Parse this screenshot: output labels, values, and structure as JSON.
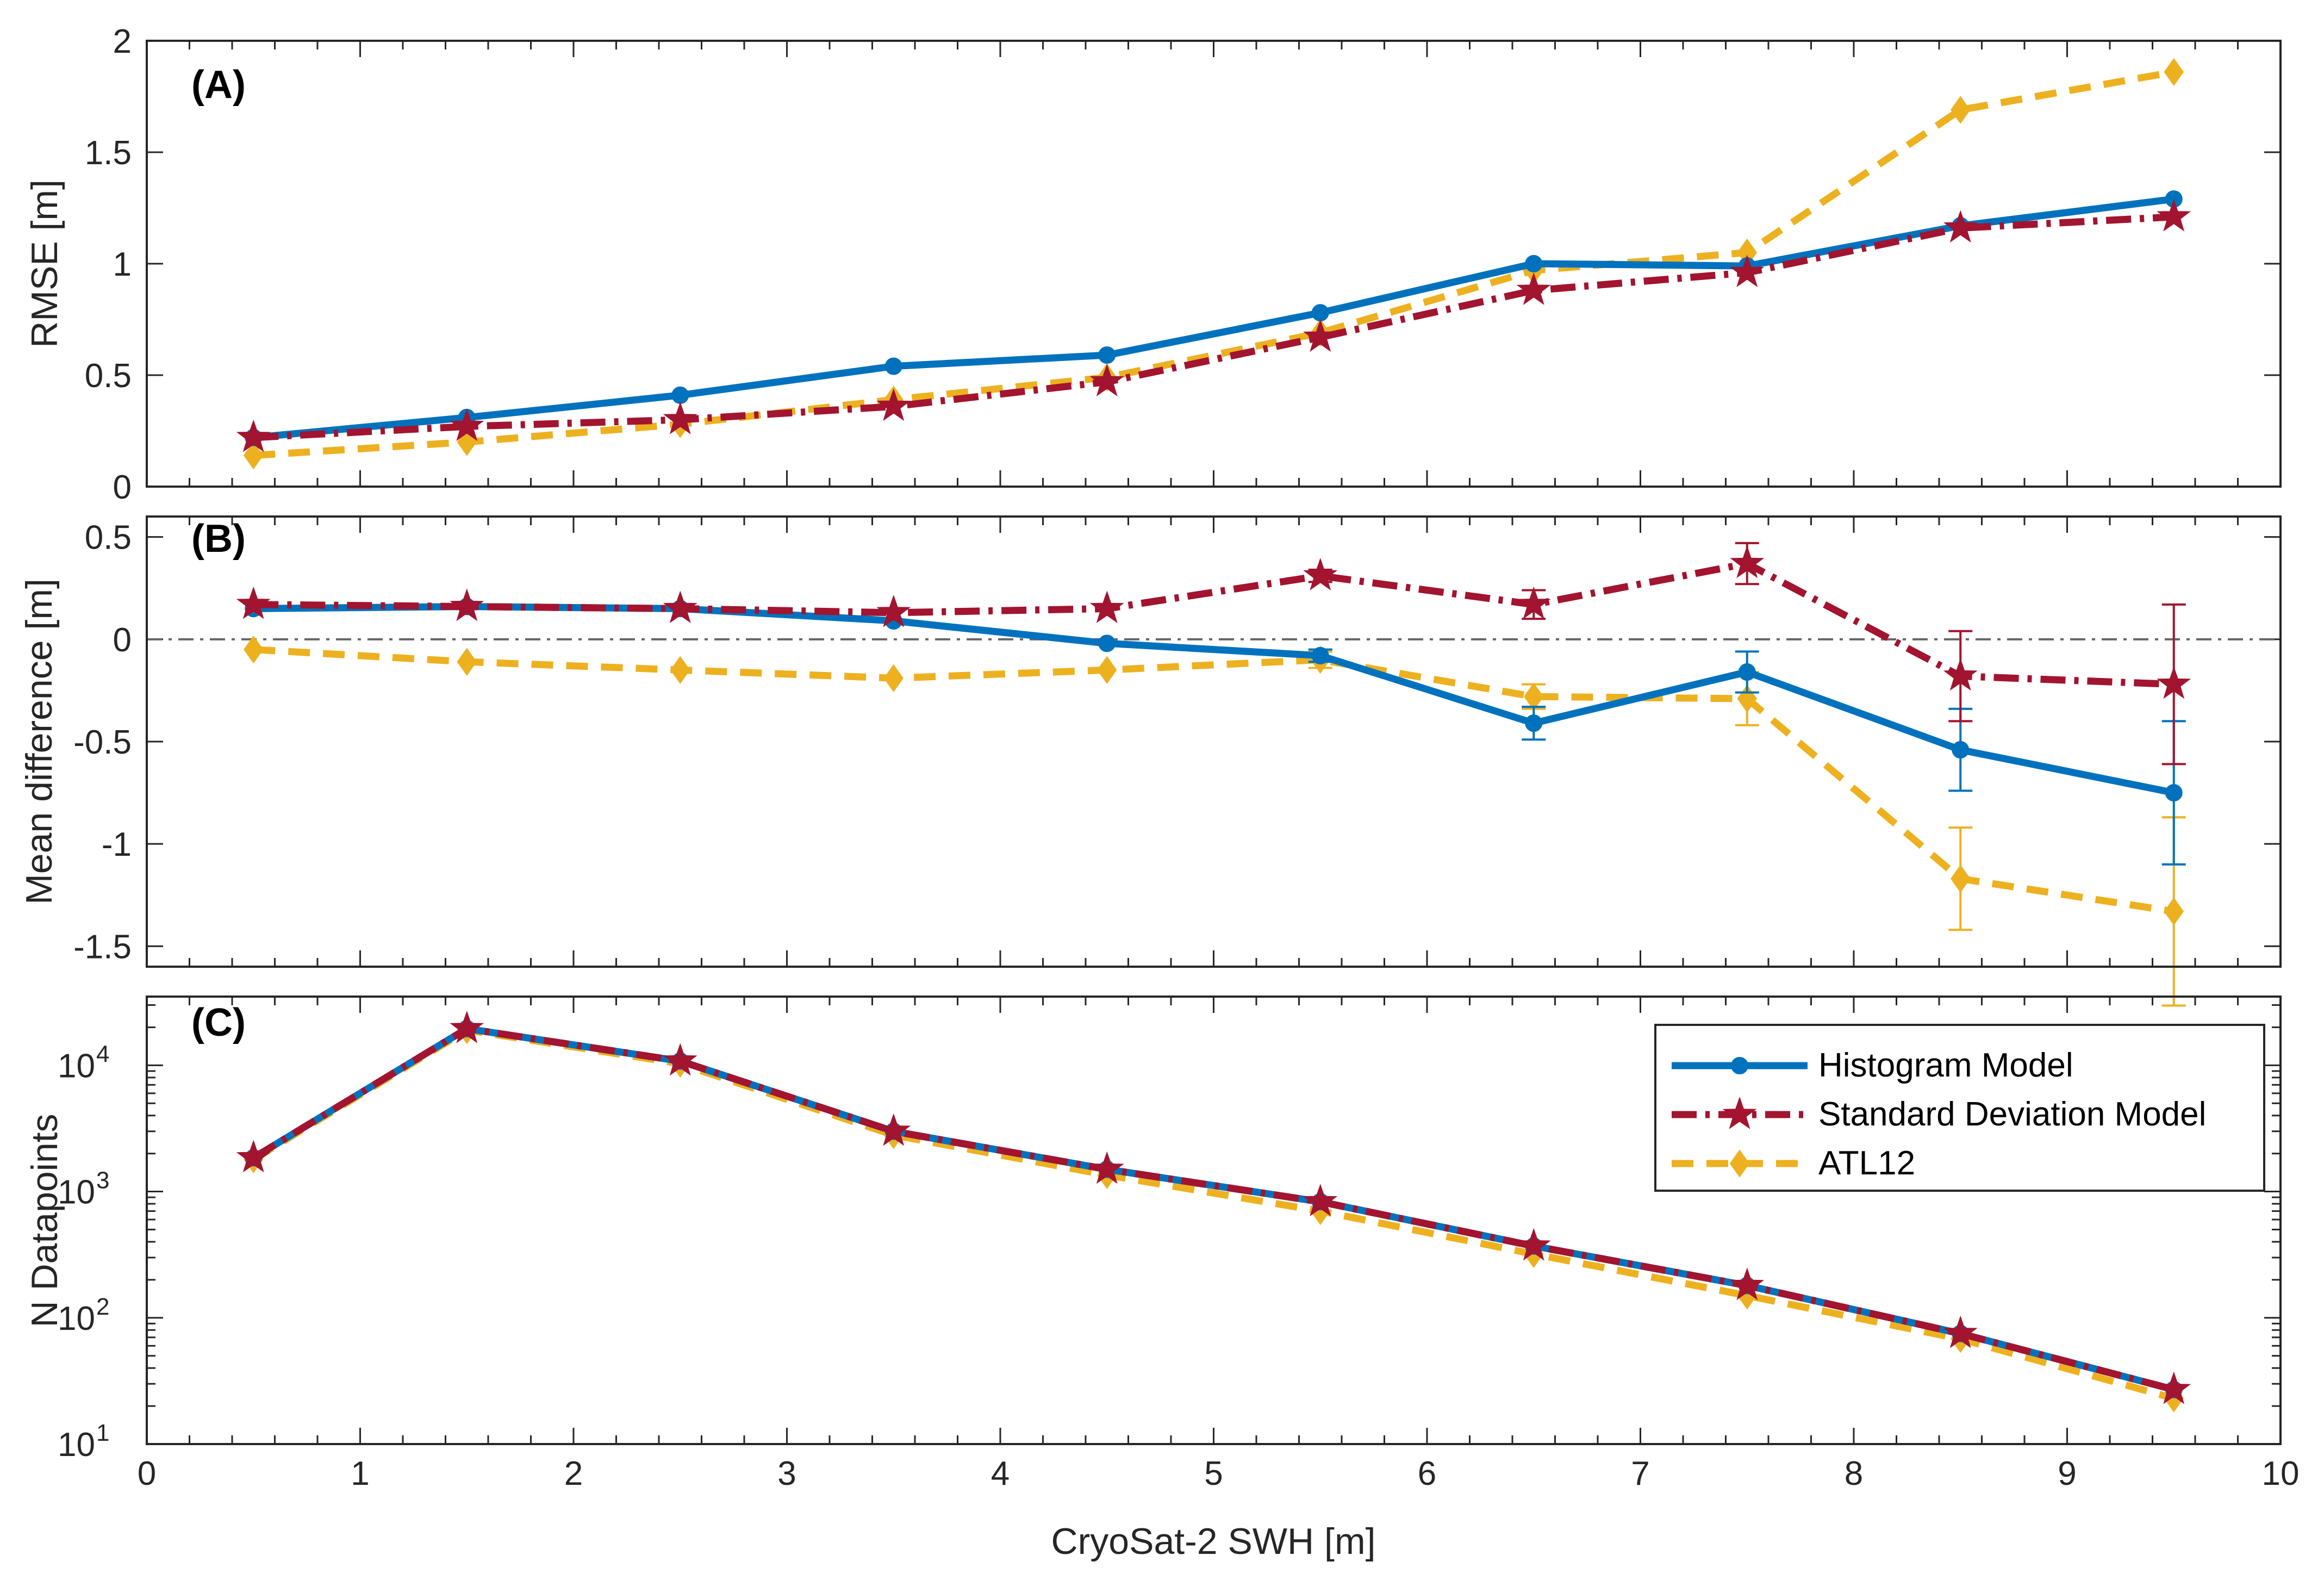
{
  "colors": {
    "histogram": "#0072BD",
    "std": "#A2142F",
    "atl12": "#EDB120",
    "axis": "#262626",
    "zero_line": "#666666"
  },
  "legend": {
    "entries": [
      "Histogram Model",
      "Standard Deviation Model",
      "ATL12"
    ],
    "location": "north-east of panel C"
  },
  "chart_data": [
    {
      "type": "line",
      "panel_tag": "(A)",
      "ylabel": "RMSE [m]",
      "xlim": [
        0,
        10
      ],
      "ylim": [
        0,
        2
      ],
      "yticks": [
        0,
        0.5,
        1,
        1.5,
        2
      ],
      "ytick_labels": [
        "0",
        "0.5",
        "1",
        "1.5",
        "2"
      ],
      "x": [
        0.5,
        1.5,
        2.5,
        3.5,
        4.5,
        5.5,
        6.5,
        7.5,
        8.5,
        9.5
      ],
      "series": [
        {
          "name": "Histogram Model",
          "values": [
            0.22,
            0.31,
            0.41,
            0.54,
            0.59,
            0.78,
            1.0,
            0.99,
            1.17,
            1.29
          ]
        },
        {
          "name": "Standard Deviation Model",
          "values": [
            0.22,
            0.27,
            0.3,
            0.36,
            0.47,
            0.67,
            0.88,
            0.96,
            1.16,
            1.21
          ]
        },
        {
          "name": "ATL12",
          "values": [
            0.14,
            0.2,
            0.28,
            0.39,
            0.49,
            0.69,
            0.97,
            1.05,
            1.69,
            1.86
          ]
        }
      ]
    },
    {
      "type": "line",
      "panel_tag": "(B)",
      "ylabel": "Mean difference [m]",
      "xlim": [
        0,
        10
      ],
      "ylim": [
        -1.6,
        0.6
      ],
      "yticks": [
        -1.5,
        -1,
        -0.5,
        0,
        0.5
      ],
      "ytick_labels": [
        "-1.5",
        "-1",
        "-0.5",
        "0",
        "0.5"
      ],
      "reference_line": 0,
      "x": [
        0.5,
        1.5,
        2.5,
        3.5,
        4.5,
        5.5,
        6.5,
        7.5,
        8.5,
        9.5
      ],
      "series": [
        {
          "name": "Histogram Model",
          "values": [
            0.15,
            0.16,
            0.15,
            0.09,
            -0.02,
            -0.08,
            -0.41,
            -0.16,
            -0.54,
            -0.75
          ],
          "errors": [
            0.01,
            0.01,
            0.01,
            0.01,
            0.02,
            0.03,
            0.08,
            0.1,
            0.2,
            0.35
          ]
        },
        {
          "name": "Standard Deviation Model",
          "values": [
            0.17,
            0.16,
            0.15,
            0.13,
            0.15,
            0.31,
            0.17,
            0.37,
            -0.18,
            -0.22
          ],
          "errors": [
            0.01,
            0.01,
            0.01,
            0.01,
            0.02,
            0.03,
            0.07,
            0.1,
            0.22,
            0.39
          ]
        },
        {
          "name": "ATL12",
          "values": [
            -0.05,
            -0.11,
            -0.15,
            -0.19,
            -0.15,
            -0.1,
            -0.28,
            -0.29,
            -1.17,
            -1.33
          ],
          "errors": [
            0.01,
            0.01,
            0.01,
            0.01,
            0.02,
            0.04,
            0.06,
            0.13,
            0.25,
            0.46
          ]
        }
      ]
    },
    {
      "type": "line",
      "panel_tag": "(C)",
      "ylabel": "N Datapoints",
      "xlabel": "CryoSat-2 SWH [m]",
      "xlim": [
        0,
        10
      ],
      "xticks": [
        0,
        1,
        2,
        3,
        4,
        5,
        6,
        7,
        8,
        9,
        10
      ],
      "xtick_labels": [
        "0",
        "1",
        "2",
        "3",
        "4",
        "5",
        "6",
        "7",
        "8",
        "9",
        "10"
      ],
      "yscale": "log",
      "ylim": [
        10,
        35000
      ],
      "yticks": [
        10,
        100,
        1000,
        10000
      ],
      "ytick_labels": [
        "10",
        "10",
        "10",
        "10"
      ],
      "ytick_exponents": [
        "1",
        "2",
        "3",
        "4"
      ],
      "x": [
        0.5,
        1.5,
        2.5,
        3.5,
        4.5,
        5.5,
        6.5,
        7.5,
        8.5,
        9.5
      ],
      "series": [
        {
          "name": "Histogram Model",
          "values": [
            1850,
            19500,
            10800,
            3000,
            1500,
            830,
            370,
            180,
            75,
            27
          ]
        },
        {
          "name": "Standard Deviation Model",
          "values": [
            1850,
            19500,
            10800,
            3000,
            1500,
            830,
            370,
            180,
            75,
            27
          ]
        },
        {
          "name": "ATL12",
          "values": [
            1800,
            19000,
            10300,
            2800,
            1350,
            700,
            320,
            150,
            68,
            23
          ]
        }
      ]
    }
  ]
}
